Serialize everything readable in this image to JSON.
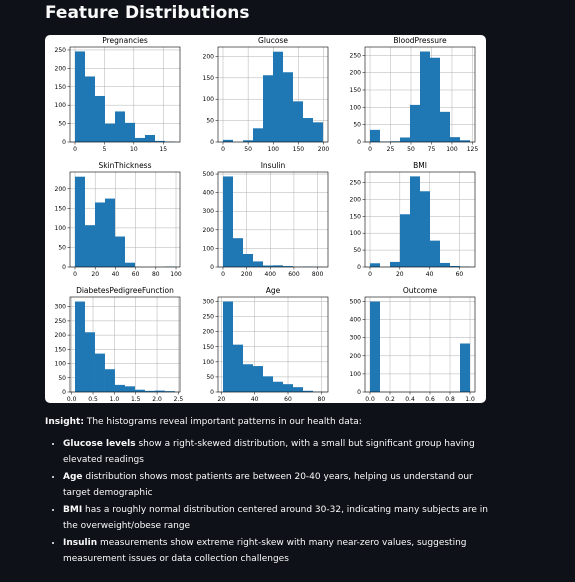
{
  "title": "Feature Distributions",
  "chart_data": [
    {
      "type": "histogram",
      "title": "Pregnancies",
      "color": "#1f77b4",
      "grid": true,
      "bins": [
        0,
        1.7,
        3.4,
        5.1,
        6.8,
        8.5,
        10.2,
        11.9,
        13.6,
        15.3,
        17
      ],
      "values": [
        246,
        178,
        125,
        50,
        83,
        52,
        11,
        19,
        3,
        1
      ],
      "xlim": [
        -0.85,
        17.85
      ],
      "ylim": [
        0,
        258
      ],
      "xticks": [
        0,
        5,
        10,
        15
      ],
      "yticks": [
        0,
        50,
        100,
        150,
        200,
        250
      ]
    },
    {
      "type": "histogram",
      "title": "Glucose",
      "color": "#1f77b4",
      "grid": true,
      "bins": [
        0,
        19.9,
        39.8,
        59.7,
        79.6,
        99.5,
        119.4,
        139.3,
        159.2,
        179.1,
        199
      ],
      "values": [
        5,
        0,
        4,
        32,
        156,
        211,
        163,
        95,
        56,
        46
      ],
      "xlim": [
        -9.95,
        208.95
      ],
      "ylim": [
        0,
        222
      ],
      "xticks": [
        0,
        50,
        100,
        150,
        200
      ],
      "yticks": [
        0,
        50,
        100,
        150,
        200
      ]
    },
    {
      "type": "histogram",
      "title": "BloodPressure",
      "color": "#1f77b4",
      "grid": true,
      "bins": [
        0,
        12.2,
        24.4,
        36.6,
        48.8,
        61,
        73.2,
        85.4,
        97.6,
        109.8,
        122
      ],
      "values": [
        35,
        1,
        2,
        13,
        107,
        261,
        243,
        87,
        14,
        5
      ],
      "xlim": [
        -6.1,
        128.1
      ],
      "ylim": [
        0,
        274
      ],
      "xticks": [
        0,
        25,
        50,
        75,
        100,
        125
      ],
      "yticks": [
        0,
        50,
        100,
        150,
        200,
        250
      ]
    },
    {
      "type": "histogram",
      "title": "SkinThickness",
      "color": "#1f77b4",
      "grid": true,
      "bins": [
        0,
        9.9,
        19.8,
        29.7,
        39.6,
        49.5,
        59.4,
        69.3,
        79.2,
        89.1,
        99
      ],
      "values": [
        231,
        107,
        165,
        175,
        78,
        11,
        0,
        0,
        0,
        1
      ],
      "xlim": [
        -4.95,
        103.95
      ],
      "ylim": [
        0,
        243
      ],
      "xticks": [
        0,
        20,
        40,
        60,
        80,
        100
      ],
      "yticks": [
        0,
        50,
        100,
        150,
        200
      ]
    },
    {
      "type": "histogram",
      "title": "Insulin",
      "color": "#1f77b4",
      "grid": true,
      "bins": [
        0,
        84.6,
        169.2,
        253.8,
        338.4,
        423,
        507.6,
        592.2,
        676.8,
        761.4,
        846
      ],
      "values": [
        487,
        155,
        70,
        30,
        8,
        9,
        5,
        1,
        2,
        1
      ],
      "xlim": [
        -42.3,
        888.3
      ],
      "ylim": [
        0,
        511
      ],
      "xticks": [
        0,
        200,
        400,
        600,
        800
      ],
      "yticks": [
        0,
        100,
        200,
        300,
        400,
        500
      ]
    },
    {
      "type": "histogram",
      "title": "BMI",
      "color": "#1f77b4",
      "grid": true,
      "bins": [
        0,
        6.71,
        13.42,
        20.13,
        26.84,
        33.55,
        40.26,
        46.97,
        53.68,
        60.39,
        67.1
      ],
      "values": [
        11,
        0,
        15,
        156,
        268,
        224,
        78,
        12,
        3,
        1
      ],
      "xlim": [
        -3.355,
        70.455
      ],
      "ylim": [
        0,
        281
      ],
      "xticks": [
        0,
        20,
        40,
        60
      ],
      "yticks": [
        0,
        50,
        100,
        150,
        200,
        250
      ]
    },
    {
      "type": "histogram",
      "title": "DiabetesPedigreeFunction",
      "color": "#1f77b4",
      "grid": true,
      "bins": [
        0.078,
        0.312,
        0.546,
        0.78,
        1.014,
        1.248,
        1.482,
        1.716,
        1.95,
        2.184,
        2.42
      ],
      "values": [
        318,
        210,
        135,
        80,
        25,
        20,
        8,
        4,
        5,
        3
      ],
      "xlim": [
        -0.039,
        2.537
      ],
      "ylim": [
        0,
        334
      ],
      "xticks": [
        {
          "value": 0,
          "label": "0.0"
        },
        0.5,
        {
          "value": 1,
          "label": "1.0"
        },
        1.5,
        {
          "value": 2,
          "label": "2.0"
        },
        2.5
      ],
      "yticks": [
        0,
        50,
        100,
        150,
        200,
        250,
        300
      ]
    },
    {
      "type": "histogram",
      "title": "Age",
      "color": "#1f77b4",
      "grid": true,
      "bins": [
        21,
        27,
        33,
        39,
        45,
        51,
        57,
        63,
        69,
        75,
        81
      ],
      "values": [
        300,
        157,
        92,
        86,
        52,
        34,
        26,
        16,
        4,
        1
      ],
      "xlim": [
        18,
        84
      ],
      "ylim": [
        0,
        315
      ],
      "xticks": [
        20,
        40,
        60,
        80
      ],
      "yticks": [
        0,
        50,
        100,
        150,
        200,
        250,
        300
      ]
    },
    {
      "type": "histogram",
      "title": "Outcome",
      "color": "#1f77b4",
      "grid": true,
      "bins": [
        0,
        0.1,
        0.2,
        0.3,
        0.4,
        0.5,
        0.6,
        0.7,
        0.8,
        0.9,
        1
      ],
      "values": [
        500,
        0,
        0,
        0,
        0,
        0,
        0,
        0,
        0,
        268
      ],
      "xlim": [
        -0.05,
        1.05
      ],
      "ylim": [
        0,
        525
      ],
      "xticks": [
        {
          "value": 0,
          "label": "0.0"
        },
        0.2,
        0.4,
        0.6,
        0.8,
        {
          "value": 1,
          "label": "1.0"
        }
      ],
      "yticks": [
        0,
        100,
        200,
        300,
        400,
        500
      ]
    }
  ],
  "insight": {
    "label": "Insight:",
    "text": "The histograms reveal important patterns in our health data:",
    "bullets": [
      {
        "lead": "Glucose levels",
        "text": "show a right-skewed distribution, with a small but significant group having elevated readings"
      },
      {
        "lead": "Age",
        "text": "distribution shows most patients are between 20-40 years, helping us understand our target demographic"
      },
      {
        "lead": "BMI",
        "text": "has a roughly normal distribution centered around 30-32, indicating many subjects are in the overweight/obese range"
      },
      {
        "lead": "Insulin",
        "text": "measurements show extreme right-skew with many near-zero values, suggesting measurement issues or data collection challenges"
      }
    ]
  }
}
